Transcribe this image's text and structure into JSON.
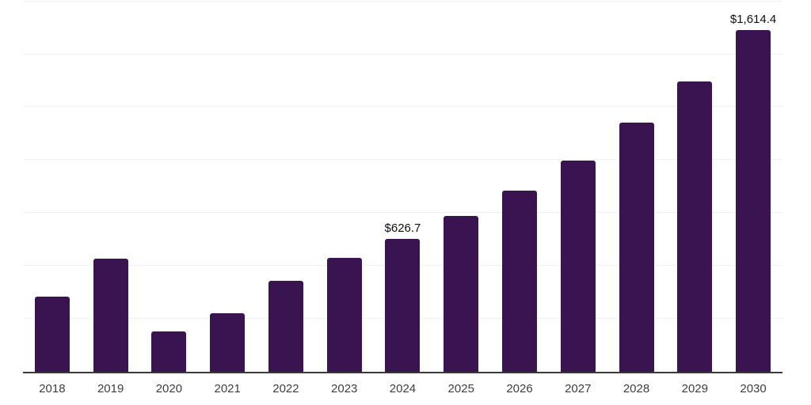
{
  "chart_data": {
    "type": "bar",
    "title": "",
    "xlabel": "",
    "ylabel": "",
    "categories": [
      "2018",
      "2019",
      "2020",
      "2021",
      "2022",
      "2023",
      "2024",
      "2025",
      "2026",
      "2027",
      "2028",
      "2029",
      "2030"
    ],
    "values": [
      355,
      535,
      191,
      277,
      430,
      539,
      626.7,
      737,
      856,
      999,
      1178,
      1372,
      1614.4
    ],
    "value_labels": [
      "",
      "",
      "",
      "",
      "",
      "",
      "$626.7",
      "",
      "",
      "",
      "",
      "",
      "$1,614.4"
    ],
    "ylim": [
      0,
      1756
    ],
    "gridline_step": 250,
    "gridline_max": 1750,
    "grid": true,
    "legend": false,
    "colors": {
      "bar": "#391450",
      "gridline": "#f1f1f1",
      "axis_line": "#3a3a3a",
      "tick_label": "#3d3d3d",
      "data_label": "#0f0f0f",
      "background": "#ffffff"
    }
  }
}
